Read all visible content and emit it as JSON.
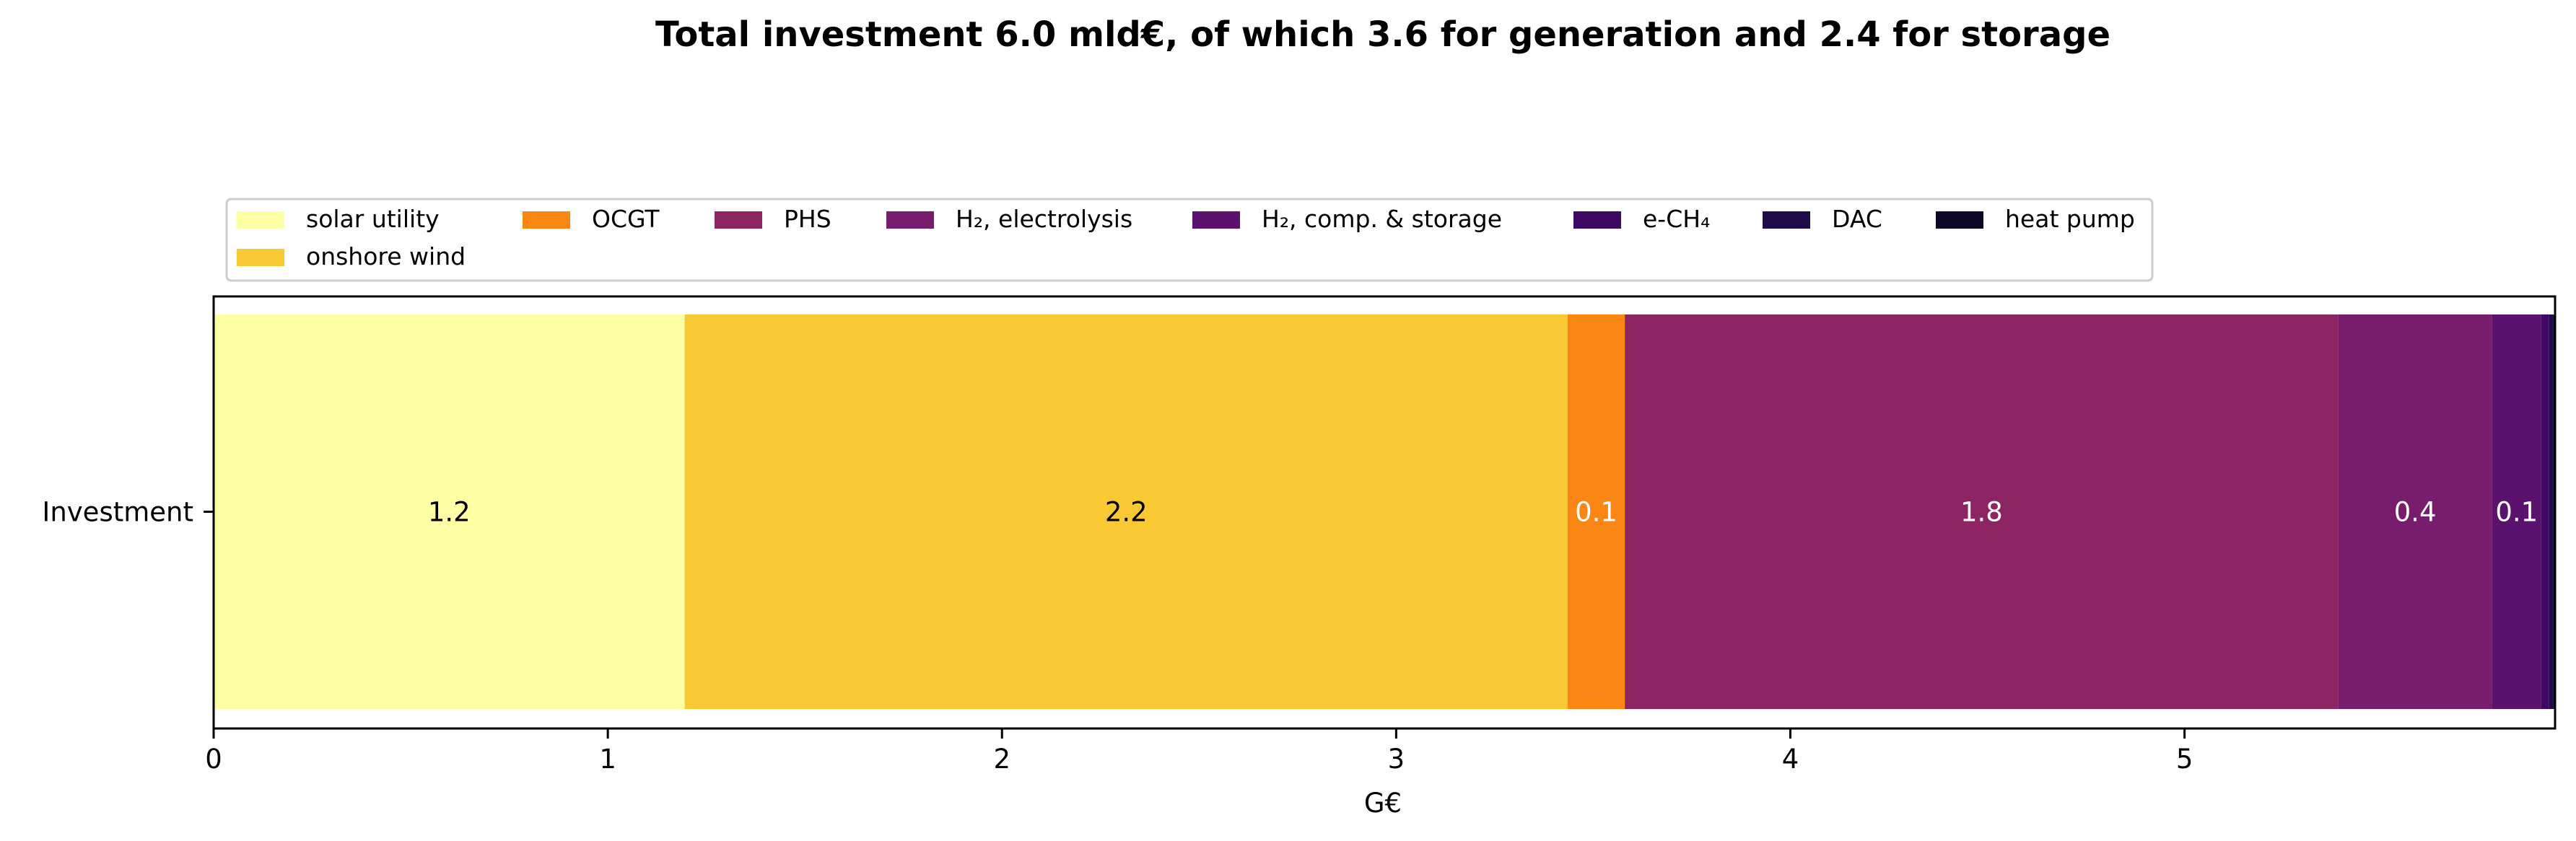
{
  "chart_data": {
    "type": "bar",
    "orientation": "horizontal",
    "stacked": true,
    "title": "Total investment 6.0 mld€, of which 3.6 for generation and 2.4 for storage",
    "xlabel": "G€",
    "ylabel": "",
    "categories": [
      "Investment"
    ],
    "xlim": [
      0,
      5.94
    ],
    "xticks": [
      "0",
      "1",
      "2",
      "3",
      "4",
      "5"
    ],
    "legend_position": "top",
    "series": [
      {
        "name": "solar utility",
        "values": [
          1.195
        ],
        "color": "#fcffa4",
        "label": "1.2",
        "label_color": "#000000"
      },
      {
        "name": "onshore wind",
        "values": [
          2.24
        ],
        "color": "#f8c932",
        "label": "2.2",
        "label_color": "#000000"
      },
      {
        "name": "OCGT",
        "values": [
          0.145
        ],
        "color": "#fa8613",
        "label": "0.1",
        "label_color": "#ffffff"
      },
      {
        "name": "PHS",
        "values": [
          1.81
        ],
        "color": "#8e2563",
        "label": "1.8",
        "label_color": "#ffffff"
      },
      {
        "name": "H₂, electrolysis",
        "values": [
          0.39
        ],
        "color": "#781c6d",
        "label": "0.4",
        "label_color": "#ffffff"
      },
      {
        "name": "H₂, comp. & storage",
        "values": [
          0.125
        ],
        "color": "#5a126e",
        "label": "0.1",
        "label_color": "#ffffff"
      },
      {
        "name": "e-CH₄",
        "values": [
          0.02
        ],
        "color": "#3d0965",
        "label": "",
        "label_color": "#ffffff"
      },
      {
        "name": "DAC",
        "values": [
          0.01
        ],
        "color": "#210c4a",
        "label": "",
        "label_color": "#ffffff"
      },
      {
        "name": "heat pump",
        "values": [
          0.005
        ],
        "color": "#0c0826",
        "label": "",
        "label_color": "#ffffff"
      }
    ]
  }
}
